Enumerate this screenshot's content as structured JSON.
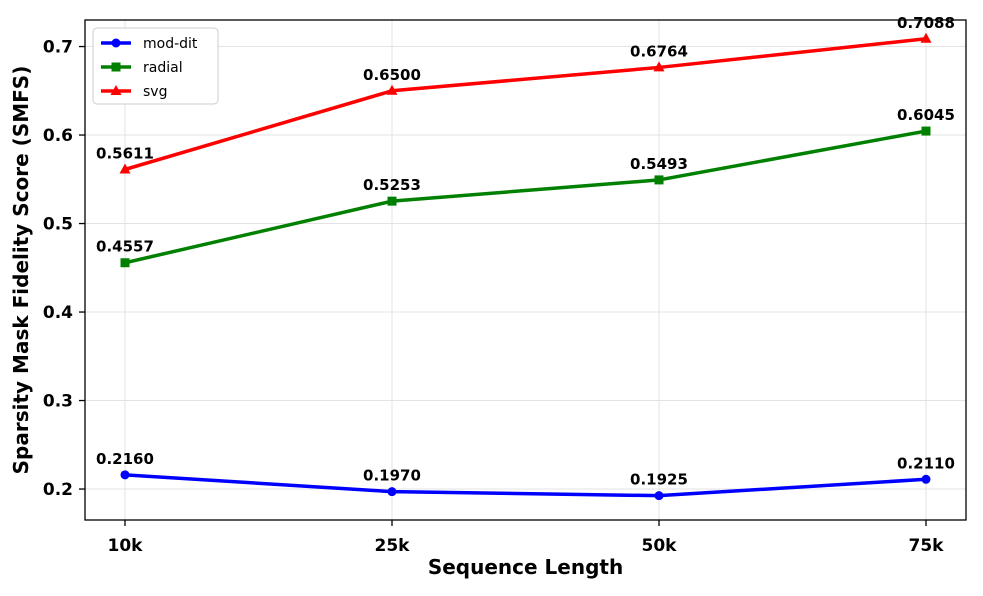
{
  "chart_data": {
    "type": "line",
    "title": "",
    "xlabel": "Sequence Length",
    "ylabel": "Sparsity Mask Fidelity Score (SMFS)",
    "categories": [
      "10k",
      "25k",
      "50k",
      "75k"
    ],
    "yticks": [
      "0.2",
      "0.3",
      "0.4",
      "0.5",
      "0.6",
      "0.7"
    ],
    "ylim": [
      0.165,
      0.73
    ],
    "grid": true,
    "legend_position": "top-left",
    "series": [
      {
        "name": "mod-dit",
        "color": "#0000ff",
        "marker": "circle",
        "values": [
          0.216,
          0.197,
          0.1925,
          0.211
        ],
        "labels": [
          "0.2160",
          "0.1970",
          "0.1925",
          "0.2110"
        ]
      },
      {
        "name": "radial",
        "color": "#008000",
        "marker": "square",
        "values": [
          0.4557,
          0.5253,
          0.5493,
          0.6045
        ],
        "labels": [
          "0.4557",
          "0.5253",
          "0.5493",
          "0.6045"
        ]
      },
      {
        "name": "svg",
        "color": "#ff0000",
        "marker": "triangle",
        "values": [
          0.5611,
          0.65,
          0.6764,
          0.7088
        ],
        "labels": [
          "0.5611",
          "0.6500",
          "0.6764",
          "0.7088"
        ]
      }
    ]
  }
}
